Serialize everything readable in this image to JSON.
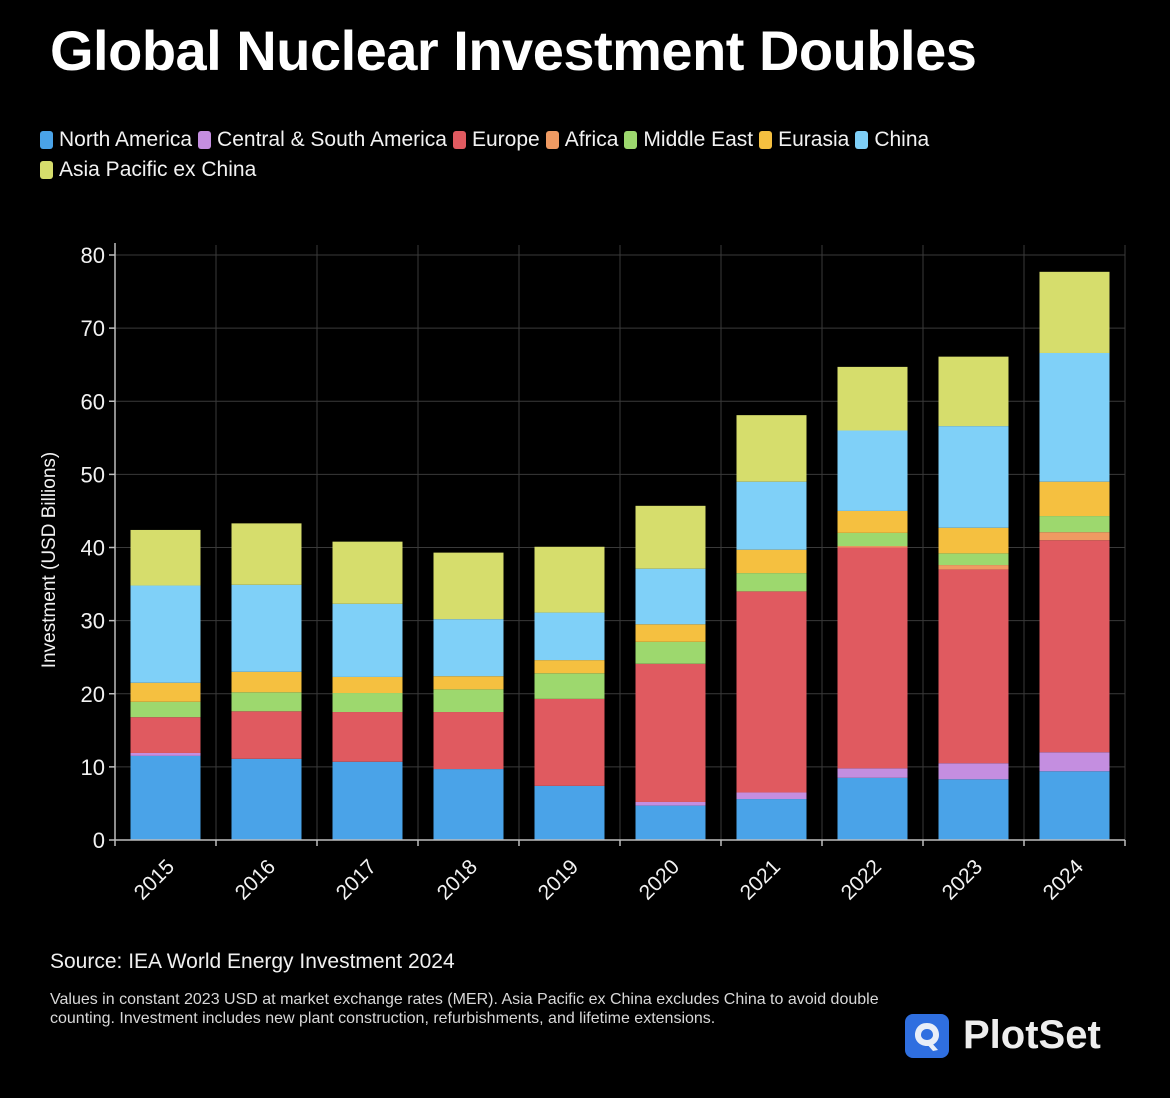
{
  "header": {
    "title": "Global Nuclear Investment Doubles"
  },
  "legend": [
    {
      "label": "North America",
      "color": "#4aa3e8"
    },
    {
      "label": "Central & South America",
      "color": "#c48ee0"
    },
    {
      "label": "Europe",
      "color": "#e05a60"
    },
    {
      "label": "Africa",
      "color": "#ef9a62"
    },
    {
      "label": "Middle East",
      "color": "#9dd86e"
    },
    {
      "label": "Eurasia",
      "color": "#f5c040"
    },
    {
      "label": "China",
      "color": "#7fd0f8"
    },
    {
      "label": "Asia Pacific ex China",
      "color": "#d6dd6c"
    }
  ],
  "chart_data": {
    "type": "bar",
    "stacked": true,
    "title": "Global Nuclear Investment Doubles",
    "xlabel": "",
    "ylabel": "Investment (USD Billions)",
    "ylim": [
      0,
      80
    ],
    "yticks": [
      0,
      10,
      20,
      30,
      40,
      50,
      60,
      70,
      80
    ],
    "grid": true,
    "legend_position": "top-left",
    "categories": [
      "2015",
      "2016",
      "2017",
      "2018",
      "2019",
      "2020",
      "2021",
      "2022",
      "2023",
      "2024"
    ],
    "series": [
      {
        "name": "North America",
        "color": "#4aa3e8",
        "values": [
          11.5,
          11.1,
          10.7,
          9.7,
          7.4,
          4.7,
          5.6,
          8.5,
          8.3,
          9.4
        ]
      },
      {
        "name": "Central & South America",
        "color": "#c48ee0",
        "values": [
          0.4,
          0.0,
          0.0,
          0.0,
          0.0,
          0.5,
          0.9,
          1.3,
          2.2,
          2.6
        ]
      },
      {
        "name": "Europe",
        "color": "#e05a60",
        "values": [
          4.9,
          6.5,
          6.8,
          7.8,
          11.9,
          18.9,
          27.5,
          30.2,
          26.5,
          29.0
        ]
      },
      {
        "name": "Africa",
        "color": "#ef9a62",
        "values": [
          0.0,
          0.0,
          0.0,
          0.0,
          0.0,
          0.0,
          0.0,
          0.2,
          0.6,
          1.1
        ]
      },
      {
        "name": "Middle East",
        "color": "#9dd86e",
        "values": [
          2.1,
          2.6,
          2.6,
          3.1,
          3.5,
          3.0,
          2.5,
          1.8,
          1.6,
          2.2
        ]
      },
      {
        "name": "Eurasia",
        "color": "#f5c040",
        "values": [
          2.6,
          2.8,
          2.2,
          1.8,
          1.8,
          2.4,
          3.2,
          3.0,
          3.5,
          4.7
        ]
      },
      {
        "name": "China",
        "color": "#7fd0f8",
        "values": [
          13.3,
          11.9,
          10.0,
          7.8,
          6.5,
          7.6,
          9.3,
          11.0,
          13.9,
          17.6
        ]
      },
      {
        "name": "Asia Pacific ex China",
        "color": "#d6dd6c",
        "values": [
          7.6,
          8.4,
          8.5,
          9.1,
          9.0,
          8.6,
          9.1,
          8.7,
          9.5,
          11.1
        ]
      }
    ]
  },
  "footer": {
    "source": "Source: IEA World Energy Investment 2024",
    "note": "Values in constant 2023 USD at market exchange rates (MER). Asia Pacific ex China excludes China to avoid double counting. Investment includes new plant construction, refurbishments, and lifetime extensions.",
    "brand": "PlotSet",
    "brand_color": "#2f6fe0"
  }
}
